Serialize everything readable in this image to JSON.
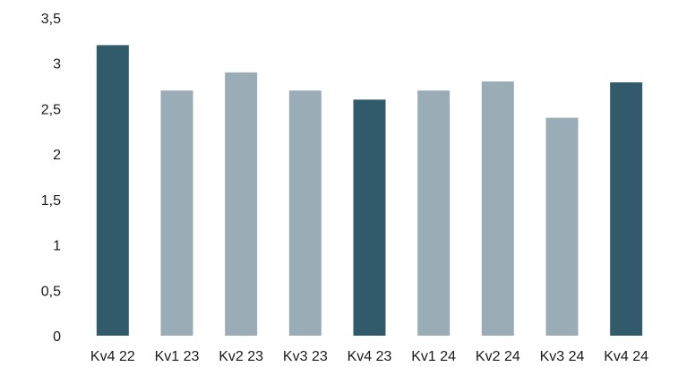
{
  "chart_data": {
    "type": "bar",
    "title": "",
    "xlabel": "",
    "ylabel": "",
    "categories": [
      "Kv4 22",
      "Kv1 23",
      "Kv2 23",
      "Kv3 23",
      "Kv4 23",
      "Kv1 24",
      "Kv2 24",
      "Kv3 24",
      "Kv4 24"
    ],
    "values": [
      3.2,
      2.7,
      2.9,
      2.7,
      2.6,
      2.7,
      2.8,
      2.4,
      2.79
    ],
    "highlight": [
      true,
      false,
      false,
      false,
      true,
      false,
      false,
      false,
      true
    ],
    "ylim": [
      0,
      3.5
    ],
    "yticks": [
      0,
      0.5,
      1,
      1.5,
      2,
      2.5,
      3,
      3.5
    ],
    "ytick_labels": [
      "0",
      "0,5",
      "1",
      "1,5",
      "2",
      "2,5",
      "3",
      "3,5"
    ],
    "grid": false,
    "legend": "none",
    "colors": {
      "highlight": "#315b6b",
      "normal": "#9aadb6"
    }
  }
}
